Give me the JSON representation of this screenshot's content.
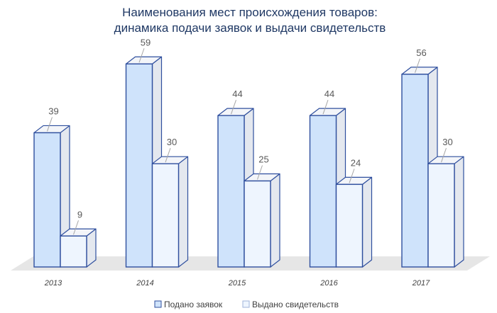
{
  "chart_data": {
    "type": "bar",
    "title": "Наименования мест происхождения товаров:",
    "subtitle": "динамика подачи заявок и выдачи свидетельств",
    "categories": [
      "2013",
      "2014",
      "2015",
      "2016",
      "2017"
    ],
    "series": [
      {
        "name": "Подано заявок",
        "values": [
          39,
          59,
          44,
          44,
          56
        ],
        "color": "#cfe3fb"
      },
      {
        "name": "Выдано свидетельств",
        "values": [
          9,
          30,
          25,
          24,
          30
        ],
        "color": "#eef5fe"
      }
    ],
    "edge_color": "#2f4f9e",
    "floor_color": "#e6e6e6",
    "ylim": [
      0,
      60
    ],
    "grid": false,
    "legend": "bottom",
    "style": "3d-column"
  }
}
